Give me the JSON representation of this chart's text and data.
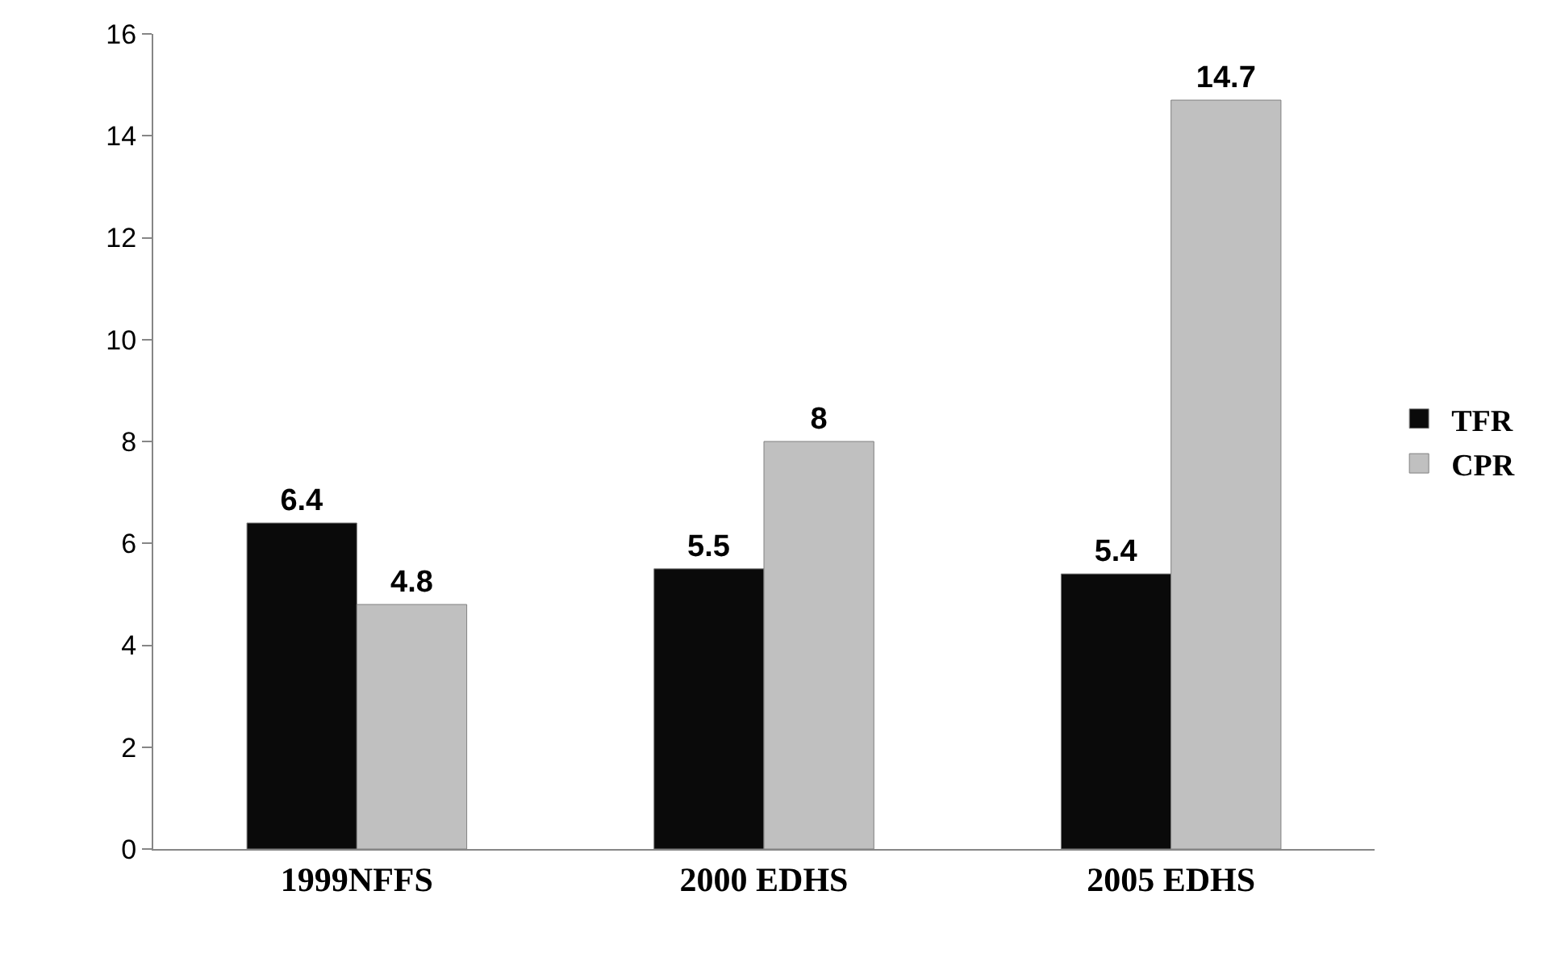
{
  "chart_data": {
    "type": "bar",
    "categories": [
      "1999NFFS",
      "2000 EDHS",
      "2005 EDHS"
    ],
    "series": [
      {
        "name": "TFR",
        "color": "#0a0a0a",
        "values": [
          6.4,
          5.5,
          5.4
        ]
      },
      {
        "name": "CPR",
        "color": "#c0c0c0",
        "values": [
          4.8,
          8,
          14.7
        ]
      }
    ],
    "ylim": [
      0,
      16
    ],
    "yticks": [
      0,
      2,
      4,
      6,
      8,
      10,
      12,
      14,
      16
    ],
    "legend": "right",
    "data_labels": true
  }
}
